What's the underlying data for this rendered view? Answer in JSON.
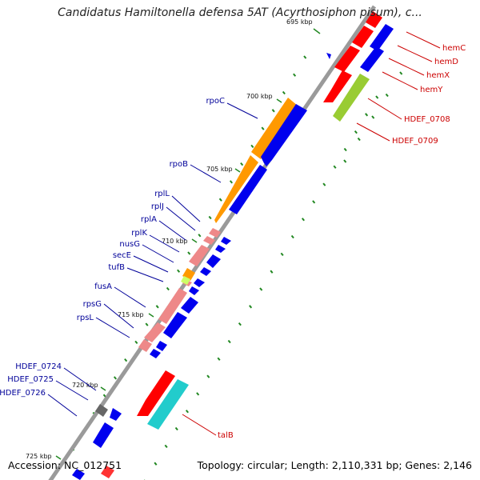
{
  "title": "Candidatus Hamiltonella defensa 5AT (Acyrthosiphon pisum), c...",
  "footer": {
    "accession": "Accession: NC_012751",
    "summary": "Topology: circular; Length: 2,110,331 bp; Genes: 2,146"
  },
  "ticks": [
    "695 kbp",
    "700 kbp",
    "705 kbp",
    "710 kbp",
    "715 kbp",
    "720 kbp",
    "725 kbp"
  ],
  "left_labels": [
    "rpoC",
    "rpoB",
    "rplL",
    "rplJ",
    "rplA",
    "rplK",
    "nusG",
    "secE",
    "tufB",
    "fusA",
    "rpsG",
    "rpsL",
    "HDEF_0724",
    "HDEF_0725",
    "HDEF_0726"
  ],
  "right_labels": [
    "hemC",
    "hemD",
    "hemX",
    "hemY",
    "HDEF_0708",
    "HDEF_0709",
    "talB"
  ],
  "colors": {
    "forward_cds": "#0000ee",
    "reverse_red": "#ff0000",
    "rna_pink": "#ee8888",
    "orange_gene": "#ff9900",
    "lime_gene": "#99cc33",
    "cyan_gene": "#22cccc",
    "gray_gene": "#666666",
    "backbone": "#888888",
    "gc_tick": "#228822",
    "left_label": "#000099",
    "right_label": "#cc0000"
  }
}
